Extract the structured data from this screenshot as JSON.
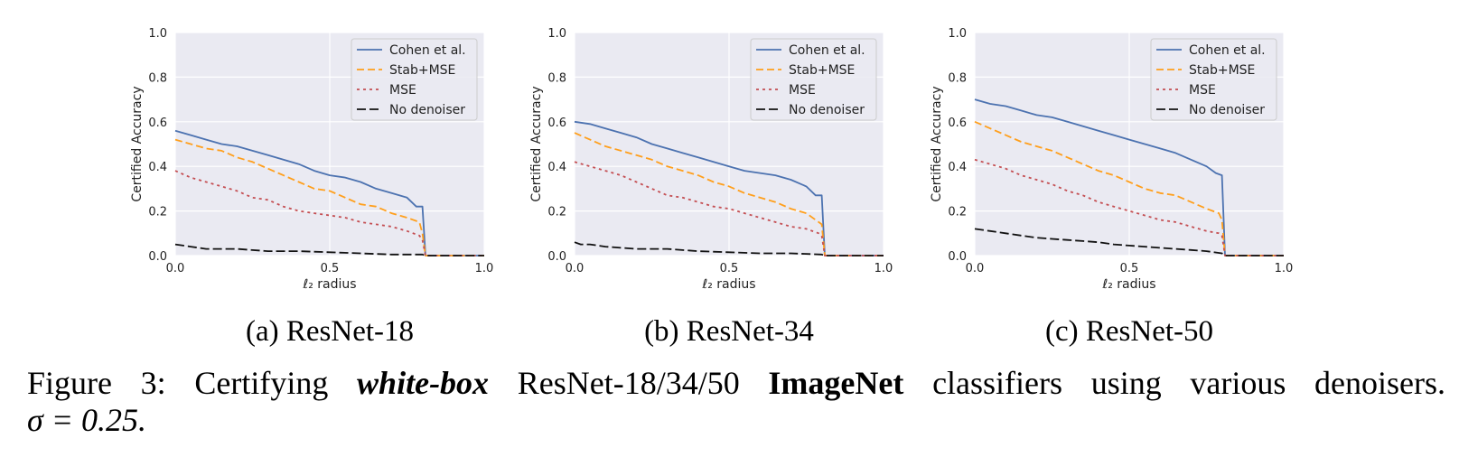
{
  "chart_data": [
    {
      "type": "line",
      "subcaption": "(a) ResNet-18",
      "xlabel": "ℓ₂ radius",
      "ylabel": "Certified Accuracy",
      "xlim": [
        0,
        1
      ],
      "ylim": [
        0,
        1
      ],
      "xticks": [
        "0.0",
        "0.5",
        "1.0"
      ],
      "yticks": [
        "0.0",
        "0.2",
        "0.4",
        "0.6",
        "0.8",
        "1.0"
      ],
      "grid": true,
      "legend": "top-right",
      "series": [
        {
          "name": "Cohen et al.",
          "color": "#4c72b0",
          "dash": "solid",
          "x": [
            0,
            0.05,
            0.1,
            0.15,
            0.2,
            0.25,
            0.3,
            0.35,
            0.4,
            0.45,
            0.5,
            0.55,
            0.6,
            0.65,
            0.7,
            0.75,
            0.78,
            0.8,
            0.81,
            0.82,
            1.0
          ],
          "y": [
            0.56,
            0.54,
            0.52,
            0.5,
            0.49,
            0.47,
            0.45,
            0.43,
            0.41,
            0.38,
            0.36,
            0.35,
            0.33,
            0.3,
            0.28,
            0.26,
            0.22,
            0.22,
            0.0,
            0.0,
            0.0
          ]
        },
        {
          "name": "Stab+MSE",
          "color": "#ff9f1c",
          "dash": "dashed",
          "x": [
            0,
            0.05,
            0.1,
            0.15,
            0.2,
            0.25,
            0.3,
            0.35,
            0.4,
            0.45,
            0.5,
            0.55,
            0.6,
            0.65,
            0.7,
            0.75,
            0.79,
            0.8,
            0.81,
            1.0
          ],
          "y": [
            0.52,
            0.5,
            0.48,
            0.47,
            0.44,
            0.42,
            0.39,
            0.36,
            0.33,
            0.3,
            0.29,
            0.26,
            0.23,
            0.22,
            0.19,
            0.17,
            0.15,
            0.1,
            0.0,
            0.0
          ]
        },
        {
          "name": "MSE",
          "color": "#c44e52",
          "dash": "dotted",
          "x": [
            0,
            0.05,
            0.1,
            0.15,
            0.2,
            0.25,
            0.3,
            0.35,
            0.4,
            0.45,
            0.5,
            0.55,
            0.6,
            0.65,
            0.7,
            0.75,
            0.79,
            0.8,
            0.81,
            1.0
          ],
          "y": [
            0.38,
            0.35,
            0.33,
            0.31,
            0.29,
            0.26,
            0.25,
            0.22,
            0.2,
            0.19,
            0.18,
            0.17,
            0.15,
            0.14,
            0.13,
            0.11,
            0.09,
            0.07,
            0.0,
            0.0
          ]
        },
        {
          "name": "No denoiser",
          "color": "#111111",
          "dash": "longdash",
          "x": [
            0,
            0.05,
            0.1,
            0.2,
            0.3,
            0.4,
            0.5,
            0.6,
            0.7,
            0.8,
            0.81,
            1.0
          ],
          "y": [
            0.05,
            0.04,
            0.03,
            0.03,
            0.02,
            0.02,
            0.015,
            0.01,
            0.005,
            0.005,
            0.0,
            0.0
          ]
        }
      ]
    },
    {
      "type": "line",
      "subcaption": "(b) ResNet-34",
      "xlabel": "ℓ₂ radius",
      "ylabel": "Certified Accuracy",
      "xlim": [
        0,
        1
      ],
      "ylim": [
        0,
        1
      ],
      "xticks": [
        "0.0",
        "0.5",
        "1.0"
      ],
      "yticks": [
        "0.0",
        "0.2",
        "0.4",
        "0.6",
        "0.8",
        "1.0"
      ],
      "grid": true,
      "legend": "top-right",
      "series": [
        {
          "name": "Cohen et al.",
          "color": "#4c72b0",
          "dash": "solid",
          "x": [
            0,
            0.05,
            0.1,
            0.15,
            0.2,
            0.25,
            0.3,
            0.35,
            0.4,
            0.45,
            0.5,
            0.55,
            0.6,
            0.65,
            0.7,
            0.75,
            0.78,
            0.8,
            0.81,
            1.0
          ],
          "y": [
            0.6,
            0.59,
            0.57,
            0.55,
            0.53,
            0.5,
            0.48,
            0.46,
            0.44,
            0.42,
            0.4,
            0.38,
            0.37,
            0.36,
            0.34,
            0.31,
            0.27,
            0.27,
            0.0,
            0.0
          ]
        },
        {
          "name": "Stab+MSE",
          "color": "#ff9f1c",
          "dash": "dashed",
          "x": [
            0,
            0.05,
            0.1,
            0.15,
            0.2,
            0.25,
            0.3,
            0.35,
            0.4,
            0.45,
            0.5,
            0.55,
            0.6,
            0.65,
            0.7,
            0.75,
            0.79,
            0.8,
            0.81,
            1.0
          ],
          "y": [
            0.55,
            0.52,
            0.49,
            0.47,
            0.45,
            0.43,
            0.4,
            0.38,
            0.36,
            0.33,
            0.31,
            0.28,
            0.26,
            0.24,
            0.21,
            0.19,
            0.15,
            0.14,
            0.0,
            0.0
          ]
        },
        {
          "name": "MSE",
          "color": "#c44e52",
          "dash": "dotted",
          "x": [
            0,
            0.05,
            0.1,
            0.15,
            0.2,
            0.25,
            0.3,
            0.35,
            0.4,
            0.45,
            0.5,
            0.55,
            0.6,
            0.65,
            0.7,
            0.75,
            0.79,
            0.8,
            0.81,
            1.0
          ],
          "y": [
            0.42,
            0.4,
            0.38,
            0.36,
            0.33,
            0.3,
            0.27,
            0.26,
            0.24,
            0.22,
            0.21,
            0.19,
            0.17,
            0.15,
            0.13,
            0.12,
            0.1,
            0.09,
            0.0,
            0.0
          ]
        },
        {
          "name": "No denoiser",
          "color": "#111111",
          "dash": "longdash",
          "x": [
            0,
            0.02,
            0.05,
            0.1,
            0.2,
            0.3,
            0.4,
            0.5,
            0.6,
            0.7,
            0.8,
            0.81,
            1.0
          ],
          "y": [
            0.06,
            0.05,
            0.05,
            0.04,
            0.03,
            0.03,
            0.02,
            0.015,
            0.01,
            0.01,
            0.005,
            0.0,
            0.0
          ]
        }
      ]
    },
    {
      "type": "line",
      "subcaption": "(c) ResNet-50",
      "xlabel": "ℓ₂ radius",
      "ylabel": "Certified Accuracy",
      "xlim": [
        0,
        1
      ],
      "ylim": [
        0,
        1
      ],
      "xticks": [
        "0.0",
        "0.5",
        "1.0"
      ],
      "yticks": [
        "0.0",
        "0.2",
        "0.4",
        "0.6",
        "0.8",
        "1.0"
      ],
      "grid": true,
      "legend": "top-right",
      "series": [
        {
          "name": "Cohen et al.",
          "color": "#4c72b0",
          "dash": "solid",
          "x": [
            0,
            0.05,
            0.1,
            0.15,
            0.2,
            0.25,
            0.3,
            0.35,
            0.4,
            0.45,
            0.5,
            0.55,
            0.6,
            0.65,
            0.7,
            0.75,
            0.78,
            0.8,
            0.81,
            1.0
          ],
          "y": [
            0.7,
            0.68,
            0.67,
            0.65,
            0.63,
            0.62,
            0.6,
            0.58,
            0.56,
            0.54,
            0.52,
            0.5,
            0.48,
            0.46,
            0.43,
            0.4,
            0.37,
            0.36,
            0.0,
            0.0
          ]
        },
        {
          "name": "Stab+MSE",
          "color": "#ff9f1c",
          "dash": "dashed",
          "x": [
            0,
            0.05,
            0.1,
            0.15,
            0.2,
            0.25,
            0.3,
            0.35,
            0.4,
            0.45,
            0.5,
            0.55,
            0.6,
            0.65,
            0.7,
            0.75,
            0.79,
            0.8,
            0.81,
            1.0
          ],
          "y": [
            0.6,
            0.57,
            0.54,
            0.51,
            0.49,
            0.47,
            0.44,
            0.41,
            0.38,
            0.36,
            0.33,
            0.3,
            0.28,
            0.27,
            0.24,
            0.21,
            0.19,
            0.16,
            0.0,
            0.0
          ]
        },
        {
          "name": "MSE",
          "color": "#c44e52",
          "dash": "dotted",
          "x": [
            0,
            0.05,
            0.1,
            0.15,
            0.2,
            0.25,
            0.3,
            0.35,
            0.4,
            0.45,
            0.5,
            0.55,
            0.6,
            0.65,
            0.7,
            0.75,
            0.79,
            0.8,
            0.81,
            1.0
          ],
          "y": [
            0.43,
            0.41,
            0.39,
            0.36,
            0.34,
            0.32,
            0.29,
            0.27,
            0.24,
            0.22,
            0.2,
            0.18,
            0.16,
            0.15,
            0.13,
            0.11,
            0.1,
            0.09,
            0.0,
            0.0
          ]
        },
        {
          "name": "No denoiser",
          "color": "#111111",
          "dash": "longdash",
          "x": [
            0,
            0.05,
            0.1,
            0.15,
            0.2,
            0.25,
            0.3,
            0.35,
            0.4,
            0.45,
            0.5,
            0.55,
            0.6,
            0.65,
            0.7,
            0.75,
            0.8,
            0.81,
            1.0
          ],
          "y": [
            0.12,
            0.11,
            0.1,
            0.09,
            0.08,
            0.075,
            0.07,
            0.065,
            0.06,
            0.05,
            0.045,
            0.04,
            0.035,
            0.03,
            0.025,
            0.02,
            0.01,
            0.0,
            0.0
          ]
        }
      ]
    }
  ],
  "caption": {
    "prefix": "Figure 3:",
    "part1": "Certifying",
    "emph_italic_bold": "white-box",
    "part2": "ResNet-18/34/50",
    "emph_bold": "ImageNet",
    "part3": "classifiers using various denoisers.",
    "line2": "σ = 0.25."
  }
}
